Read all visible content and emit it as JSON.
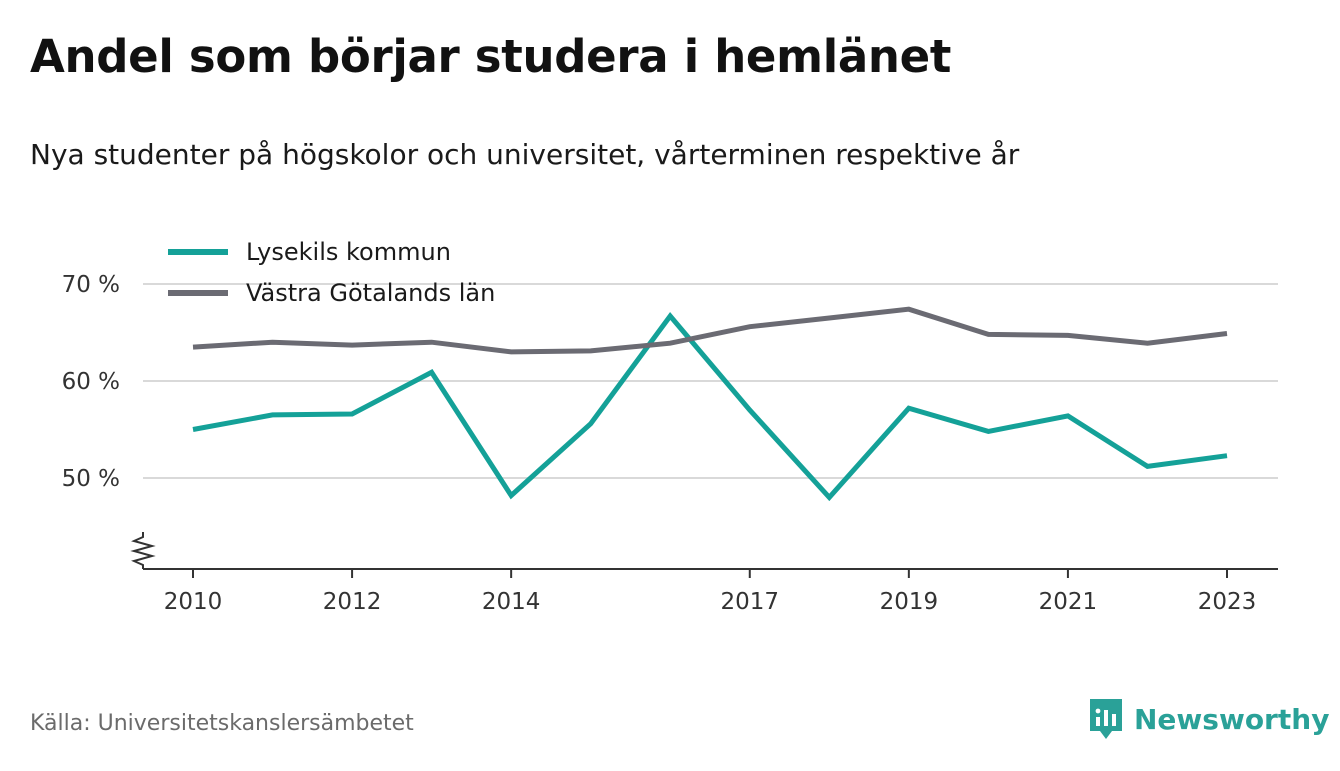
{
  "title": "Andel som börjar studera i hemlänet",
  "subtitle": "Nya studenter på högskolor och universitet, vårterminen respektive år",
  "source": "Källa: Universitetskanslersämbetet",
  "brand": {
    "name": "Newsworthy",
    "icon": "newsworthy-logo-icon"
  },
  "colors": {
    "series_1": "#14a198",
    "series_2": "#6b6b73",
    "grid": "#d9d9d9",
    "axis": "#333333",
    "brand": "#2aa198"
  },
  "chart_data": {
    "type": "line",
    "x": [
      2010,
      2011,
      2012,
      2013,
      2014,
      2015,
      2016,
      2017,
      2018,
      2019,
      2020,
      2021,
      2022,
      2023
    ],
    "x_tick_labels": [
      "2010",
      "2012",
      "2014",
      "2017",
      "2019",
      "2021",
      "2023"
    ],
    "y_tick_values": [
      50,
      60,
      70
    ],
    "y_tick_labels": [
      "50 %",
      "60 %",
      "70 %"
    ],
    "ylim": [
      41,
      70
    ],
    "axis_break": true,
    "grid": true,
    "legend_position": "top-left",
    "series": [
      {
        "name": "Lysekils kommun",
        "color": "#14a198",
        "values": [
          55.0,
          56.5,
          56.6,
          60.9,
          48.2,
          55.6,
          66.7,
          57.0,
          48.0,
          57.2,
          54.8,
          56.4,
          51.2,
          52.3
        ]
      },
      {
        "name": "Västra Götalands län",
        "color": "#6b6b73",
        "values": [
          63.5,
          64.0,
          63.7,
          64.0,
          63.0,
          63.1,
          63.9,
          65.6,
          66.5,
          67.4,
          64.8,
          64.7,
          63.9,
          64.9
        ]
      }
    ]
  }
}
